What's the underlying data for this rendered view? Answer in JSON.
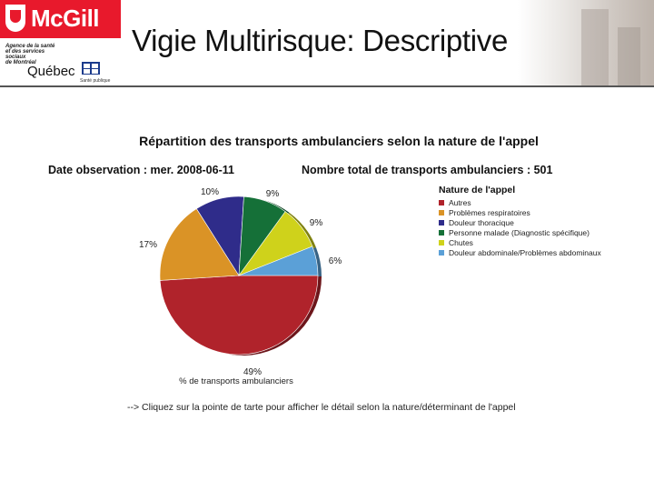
{
  "header": {
    "brand": "McGill",
    "agency": "Agence de la santé\net des services sociaux\nde Montréal",
    "province": "Québec",
    "sante": "Santé publique",
    "title": "Vigie Multirisque: Descriptive"
  },
  "chart_data": {
    "type": "pie",
    "title": "Répartition des transports ambulanciers selon la nature de l'appel",
    "observation_date": "Date observation : mer. 2008-06-11",
    "total": "Nombre total de transports ambulanciers : 501",
    "legend_title": "Nature de l'appel",
    "legend_placement": "right",
    "xlabel": "% de transports ambulanciers",
    "caption": "--> Cliquez sur la pointe de tarte pour afficher le détail selon la nature/déterminant de l'appel",
    "slices": [
      {
        "label": "Autres",
        "value": 49,
        "value_label": "49%",
        "color": "#b0232b"
      },
      {
        "label": "Problèmes respiratoires",
        "value": 17,
        "value_label": "17%",
        "color": "#da9326"
      },
      {
        "label": "Douleur thoracique",
        "value": 10,
        "value_label": "10%",
        "color": "#2f2c8a"
      },
      {
        "label": "Personne malade (Diagnostic spécifique)",
        "value": 9,
        "value_label": "9%",
        "color": "#157038"
      },
      {
        "label": "Chutes",
        "value": 9,
        "value_label": "9%",
        "color": "#cfd21b"
      },
      {
        "label": "Douleur abdominale/Problèmes abdominaux",
        "value": 6,
        "value_label": "6%",
        "color": "#5ba0d7"
      }
    ]
  }
}
